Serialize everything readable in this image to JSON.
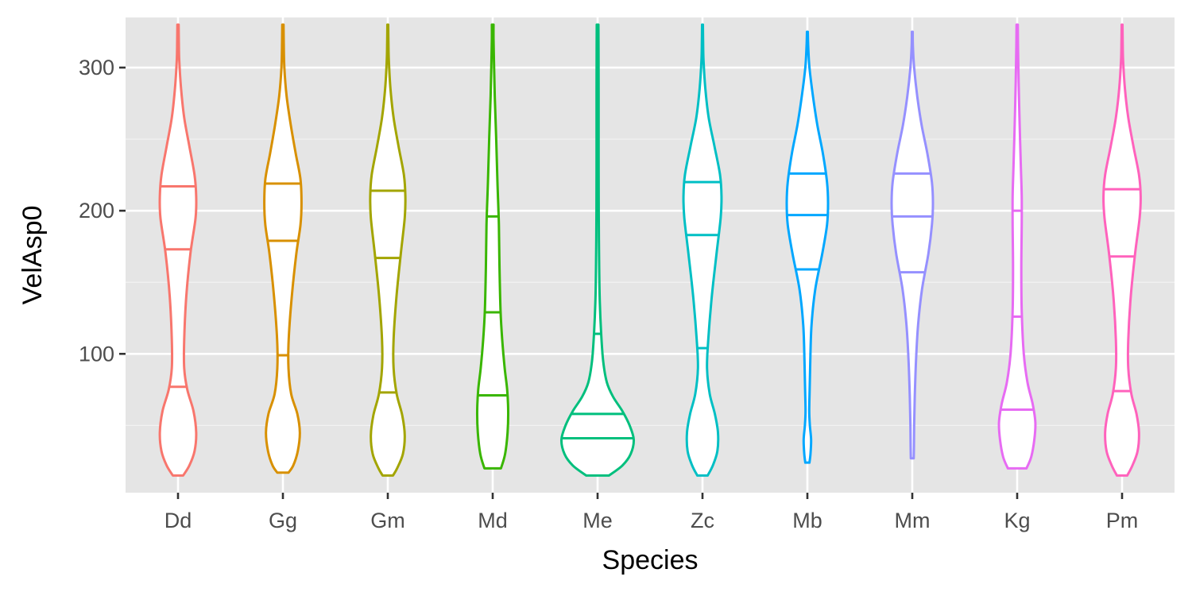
{
  "chart_data": {
    "type": "violin",
    "xlabel": "Species",
    "ylabel": "VelAsp0",
    "ylim": [
      3,
      335
    ],
    "yticks": [
      100,
      200,
      300
    ],
    "y_minor_ticks": [
      50,
      150,
      250
    ],
    "grid": true,
    "panel_background": "#e5e5e5",
    "categories": [
      "Dd",
      "Gg",
      "Gm",
      "Md",
      "Me",
      "Zc",
      "Mb",
      "Mm",
      "Kg",
      "Pm"
    ],
    "colors": [
      "#F8766D",
      "#D89000",
      "#A3A500",
      "#39B600",
      "#00BF7D",
      "#00BFC4",
      "#00A7FF",
      "#9590FF",
      "#E76BF3",
      "#FF62BC"
    ],
    "series": [
      {
        "category": "Dd",
        "min": 15,
        "max": 330,
        "quantiles": [
          77,
          173,
          217
        ],
        "profile": [
          [
            15,
            0.25
          ],
          [
            22,
            0.55
          ],
          [
            32,
            0.8
          ],
          [
            45,
            0.88
          ],
          [
            60,
            0.75
          ],
          [
            75,
            0.45
          ],
          [
            90,
            0.3
          ],
          [
            110,
            0.3
          ],
          [
            140,
            0.4
          ],
          [
            170,
            0.6
          ],
          [
            195,
            0.85
          ],
          [
            210,
            0.88
          ],
          [
            225,
            0.8
          ],
          [
            245,
            0.55
          ],
          [
            265,
            0.3
          ],
          [
            285,
            0.15
          ],
          [
            305,
            0.06
          ],
          [
            318,
            0.04
          ],
          [
            330,
            0.03
          ]
        ]
      },
      {
        "category": "Gg",
        "min": 17,
        "max": 330,
        "quantiles": [
          99,
          179,
          219
        ],
        "profile": [
          [
            17,
            0.27
          ],
          [
            22,
            0.5
          ],
          [
            32,
            0.72
          ],
          [
            45,
            0.82
          ],
          [
            58,
            0.7
          ],
          [
            72,
            0.4
          ],
          [
            90,
            0.27
          ],
          [
            110,
            0.28
          ],
          [
            140,
            0.43
          ],
          [
            170,
            0.65
          ],
          [
            190,
            0.85
          ],
          [
            205,
            0.9
          ],
          [
            222,
            0.85
          ],
          [
            240,
            0.62
          ],
          [
            260,
            0.38
          ],
          [
            280,
            0.18
          ],
          [
            300,
            0.07
          ],
          [
            318,
            0.04
          ],
          [
            330,
            0.03
          ]
        ]
      },
      {
        "category": "Gm",
        "min": 15,
        "max": 330,
        "quantiles": [
          73,
          167,
          214
        ],
        "profile": [
          [
            15,
            0.25
          ],
          [
            20,
            0.45
          ],
          [
            30,
            0.73
          ],
          [
            43,
            0.82
          ],
          [
            57,
            0.7
          ],
          [
            72,
            0.43
          ],
          [
            90,
            0.28
          ],
          [
            110,
            0.28
          ],
          [
            140,
            0.42
          ],
          [
            170,
            0.63
          ],
          [
            195,
            0.82
          ],
          [
            210,
            0.85
          ],
          [
            225,
            0.78
          ],
          [
            245,
            0.52
          ],
          [
            265,
            0.28
          ],
          [
            285,
            0.13
          ],
          [
            305,
            0.05
          ],
          [
            318,
            0.03
          ],
          [
            330,
            0.02
          ]
        ]
      },
      {
        "category": "Md",
        "min": 20,
        "max": 330,
        "quantiles": [
          71,
          129,
          196
        ],
        "profile": [
          [
            20,
            0.4
          ],
          [
            30,
            0.6
          ],
          [
            45,
            0.72
          ],
          [
            60,
            0.75
          ],
          [
            75,
            0.7
          ],
          [
            90,
            0.58
          ],
          [
            110,
            0.46
          ],
          [
            130,
            0.38
          ],
          [
            160,
            0.33
          ],
          [
            190,
            0.3
          ],
          [
            220,
            0.23
          ],
          [
            250,
            0.17
          ],
          [
            280,
            0.1
          ],
          [
            305,
            0.06
          ],
          [
            320,
            0.04
          ],
          [
            330,
            0.04
          ]
        ]
      },
      {
        "category": "Me",
        "min": 15,
        "max": 330,
        "quantiles": [
          41,
          58,
          114
        ],
        "profile": [
          [
            15,
            0.55
          ],
          [
            22,
            1.2
          ],
          [
            30,
            1.6
          ],
          [
            40,
            1.75
          ],
          [
            50,
            1.55
          ],
          [
            60,
            1.2
          ],
          [
            70,
            0.75
          ],
          [
            80,
            0.45
          ],
          [
            95,
            0.27
          ],
          [
            115,
            0.17
          ],
          [
            140,
            0.1
          ],
          [
            170,
            0.07
          ],
          [
            200,
            0.055
          ],
          [
            240,
            0.05
          ],
          [
            280,
            0.05
          ],
          [
            315,
            0.045
          ],
          [
            330,
            0.04
          ]
        ]
      },
      {
        "category": "Zc",
        "min": 15,
        "max": 330,
        "quantiles": [
          104,
          183,
          220
        ],
        "profile": [
          [
            15,
            0.25
          ],
          [
            22,
            0.5
          ],
          [
            32,
            0.72
          ],
          [
            45,
            0.75
          ],
          [
            58,
            0.6
          ],
          [
            72,
            0.35
          ],
          [
            90,
            0.22
          ],
          [
            110,
            0.28
          ],
          [
            140,
            0.45
          ],
          [
            170,
            0.68
          ],
          [
            195,
            0.88
          ],
          [
            210,
            0.92
          ],
          [
            225,
            0.85
          ],
          [
            245,
            0.58
          ],
          [
            265,
            0.3
          ],
          [
            285,
            0.14
          ],
          [
            305,
            0.05
          ],
          [
            318,
            0.03
          ],
          [
            330,
            0.02
          ]
        ]
      },
      {
        "category": "Mb",
        "min": 24,
        "max": 325,
        "quantiles": [
          159,
          197,
          226
        ],
        "profile": [
          [
            24,
            0.1
          ],
          [
            30,
            0.15
          ],
          [
            40,
            0.18
          ],
          [
            50,
            0.12
          ],
          [
            60,
            0.09
          ],
          [
            75,
            0.11
          ],
          [
            95,
            0.14
          ],
          [
            120,
            0.2
          ],
          [
            145,
            0.38
          ],
          [
            170,
            0.72
          ],
          [
            190,
            0.95
          ],
          [
            205,
            1.0
          ],
          [
            220,
            0.95
          ],
          [
            240,
            0.75
          ],
          [
            260,
            0.48
          ],
          [
            280,
            0.27
          ],
          [
            300,
            0.1
          ],
          [
            315,
            0.04
          ],
          [
            325,
            0.02
          ]
        ]
      },
      {
        "category": "Mm",
        "min": 27,
        "max": 325,
        "quantiles": [
          157,
          196,
          226
        ],
        "profile": [
          [
            27,
            0.07
          ],
          [
            35,
            0.08
          ],
          [
            50,
            0.09
          ],
          [
            70,
            0.12
          ],
          [
            95,
            0.18
          ],
          [
            120,
            0.28
          ],
          [
            145,
            0.47
          ],
          [
            170,
            0.78
          ],
          [
            190,
            0.95
          ],
          [
            205,
            1.0
          ],
          [
            220,
            0.95
          ],
          [
            240,
            0.73
          ],
          [
            260,
            0.45
          ],
          [
            280,
            0.24
          ],
          [
            300,
            0.09
          ],
          [
            315,
            0.03
          ],
          [
            325,
            0.02
          ]
        ]
      },
      {
        "category": "Kg",
        "min": 20,
        "max": 330,
        "quantiles": [
          61,
          126,
          200
        ],
        "profile": [
          [
            20,
            0.45
          ],
          [
            28,
            0.68
          ],
          [
            40,
            0.83
          ],
          [
            52,
            0.88
          ],
          [
            65,
            0.75
          ],
          [
            80,
            0.5
          ],
          [
            100,
            0.32
          ],
          [
            130,
            0.22
          ],
          [
            160,
            0.2
          ],
          [
            190,
            0.22
          ],
          [
            210,
            0.22
          ],
          [
            230,
            0.18
          ],
          [
            260,
            0.12
          ],
          [
            290,
            0.07
          ],
          [
            315,
            0.04
          ],
          [
            330,
            0.03
          ]
        ]
      },
      {
        "category": "Pm",
        "min": 15,
        "max": 330,
        "quantiles": [
          74,
          168,
          215
        ],
        "profile": [
          [
            15,
            0.25
          ],
          [
            22,
            0.5
          ],
          [
            32,
            0.75
          ],
          [
            45,
            0.82
          ],
          [
            58,
            0.7
          ],
          [
            72,
            0.45
          ],
          [
            90,
            0.3
          ],
          [
            110,
            0.3
          ],
          [
            140,
            0.42
          ],
          [
            170,
            0.63
          ],
          [
            195,
            0.85
          ],
          [
            210,
            0.9
          ],
          [
            225,
            0.82
          ],
          [
            245,
            0.55
          ],
          [
            265,
            0.3
          ],
          [
            285,
            0.14
          ],
          [
            305,
            0.05
          ],
          [
            318,
            0.03
          ],
          [
            330,
            0.02
          ]
        ]
      }
    ]
  }
}
